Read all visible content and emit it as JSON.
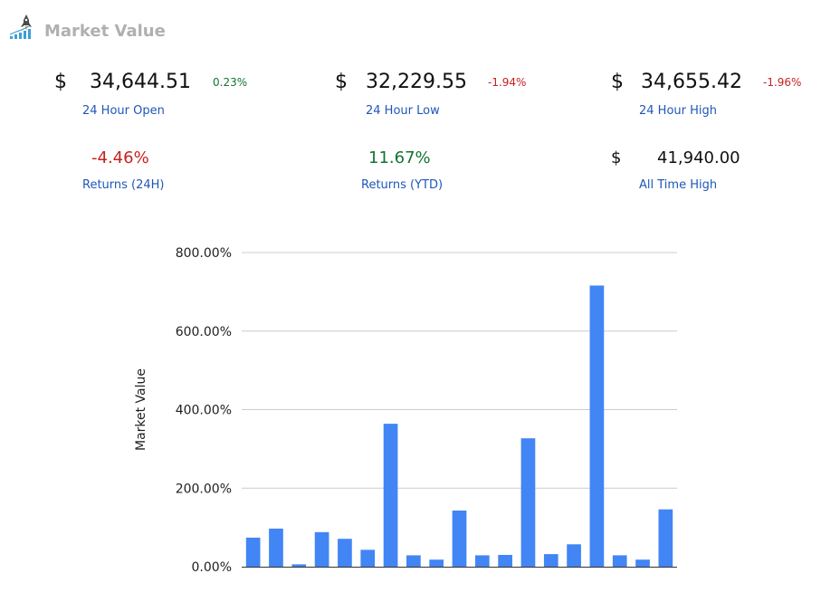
{
  "header": {
    "title": "Market Value",
    "icon": "rocket-chart-icon"
  },
  "stats": {
    "open": {
      "currency": "$",
      "value": "34,644.51",
      "change": "0.23%",
      "label": "24 Hour Open"
    },
    "low": {
      "currency": "$",
      "value": "32,229.55",
      "change": "-1.94%",
      "label": "24 Hour Low"
    },
    "high": {
      "currency": "$",
      "value": "34,655.42",
      "change": "-1.96%",
      "label": "24 Hour High"
    },
    "returns_24h": {
      "value": "-4.46%",
      "label": "Returns (24H)"
    },
    "returns_ytd": {
      "value": "11.67%",
      "label": "Returns (YTD)"
    },
    "ath": {
      "currency": "$",
      "value": "41,940.00",
      "label": "All Time High"
    }
  },
  "colors": {
    "positive": "#137333",
    "negative": "#c5221f",
    "label": "#1f57b8",
    "bar": "#4285f4",
    "title": "#b0b0b0"
  },
  "chart_data": {
    "type": "bar",
    "title": "",
    "xlabel": "",
    "ylabel": "Market Value",
    "ylim": [
      0,
      800
    ],
    "yticks": [
      0,
      200,
      400,
      600,
      800
    ],
    "ytick_labels": [
      "0.00%",
      "200.00%",
      "400.00%",
      "600.00%",
      "800.00%"
    ],
    "grid": true,
    "legend": "none",
    "values": [
      74,
      97,
      6,
      88,
      71,
      43,
      364,
      29,
      18,
      143,
      29,
      30,
      327,
      32,
      57,
      716,
      29,
      18,
      146
    ]
  }
}
